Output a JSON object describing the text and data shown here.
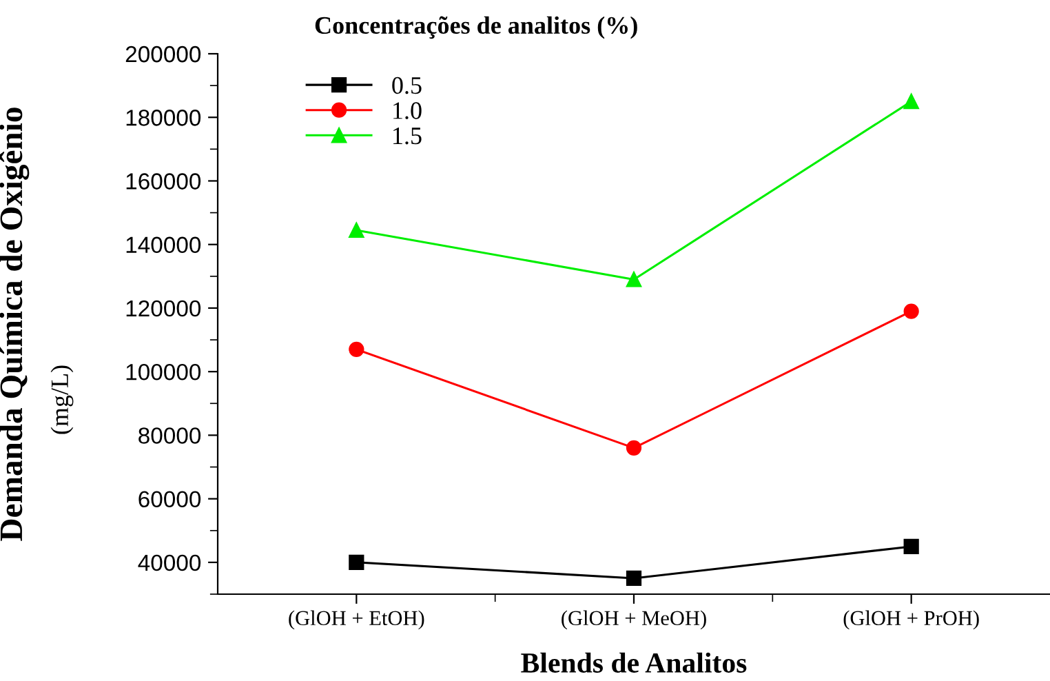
{
  "chart_data": {
    "type": "line",
    "legend_title": "Concentrações de analitos (%)",
    "xlabel": "Blends de Analitos",
    "ylabel": "Demanda Química de Oxigênio",
    "annotations": [
      "(mg/L)"
    ],
    "categories": [
      "(GlOH + EtOH)",
      "(GlOH + MeOH)",
      "(GlOH + PrOH)"
    ],
    "series": [
      {
        "name": "0.5",
        "color": "#000000",
        "marker": "square",
        "values": [
          40000,
          35000,
          45000
        ]
      },
      {
        "name": "1.0",
        "color": "#ff0000",
        "marker": "circle",
        "values": [
          107000,
          76000,
          119000
        ]
      },
      {
        "name": "1.5",
        "color": "#00ee00",
        "marker": "triangle",
        "values": [
          144500,
          129000,
          185000
        ]
      }
    ],
    "ylim": [
      30000,
      200000
    ],
    "yticks": [
      40000,
      60000,
      80000,
      100000,
      120000,
      140000,
      160000,
      180000,
      200000
    ],
    "grid": false,
    "legend": "top left",
    "line_style": "solid"
  }
}
